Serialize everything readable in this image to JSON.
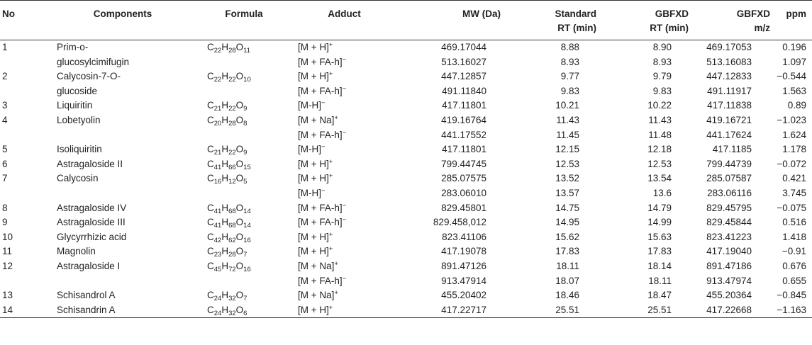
{
  "headers": {
    "no": "No",
    "components": "Components",
    "formula": "Formula",
    "adduct": "Adduct",
    "mw": "MW (Da)",
    "std_rt": [
      "Standard",
      "RT (min)"
    ],
    "gbfxd_rt": [
      "GBFXD",
      "RT (min)"
    ],
    "gbfxd_mz": [
      "GBFXD",
      "m/z"
    ],
    "ppm": "ppm"
  },
  "rows": [
    {
      "no": "1",
      "component": "Prim-o-",
      "formula": [
        [
          "C",
          "22"
        ],
        [
          "H",
          "28"
        ],
        [
          "O",
          "11"
        ]
      ],
      "adduct": [
        "[M + H]",
        "+"
      ],
      "mw": "469.17044",
      "std_rt": "8.88",
      "gbfxd_rt": "8.90",
      "gbfxd_mz": "469.17053",
      "ppm": "0.196"
    },
    {
      "no": "",
      "component": "glucosylcimifugin",
      "formula": [],
      "adduct": [
        "[M + FA-h]",
        "−"
      ],
      "mw": "513.16027",
      "std_rt": "8.93",
      "gbfxd_rt": "8.93",
      "gbfxd_mz": "513.16083",
      "ppm": "1.097"
    },
    {
      "no": "2",
      "component": "Calycosin-7-O-",
      "formula": [
        [
          "C",
          "22"
        ],
        [
          "H",
          "22"
        ],
        [
          "O",
          "10"
        ]
      ],
      "adduct": [
        "[M + H]",
        "+"
      ],
      "mw": "447.12857",
      "std_rt": "9.77",
      "gbfxd_rt": "9.79",
      "gbfxd_mz": "447.12833",
      "ppm": "−0.544"
    },
    {
      "no": "",
      "component": "glucoside",
      "formula": [],
      "adduct": [
        "[M + FA-h]",
        "−"
      ],
      "mw": "491.11840",
      "std_rt": "9.83",
      "gbfxd_rt": "9.83",
      "gbfxd_mz": "491.11917",
      "ppm": "1.563"
    },
    {
      "no": "3",
      "component": "Liquiritin",
      "formula": [
        [
          "C",
          "21"
        ],
        [
          "H",
          "22"
        ],
        [
          "O",
          "9"
        ]
      ],
      "adduct": [
        "[M-H]",
        "−"
      ],
      "mw": "417.11801",
      "std_rt": "10.21",
      "gbfxd_rt": "10.22",
      "gbfxd_mz": "417.11838",
      "ppm": "0.89"
    },
    {
      "no": "4",
      "component": "Lobetyolin",
      "formula": [
        [
          "C",
          "20"
        ],
        [
          "H",
          "28"
        ],
        [
          "O",
          "8"
        ]
      ],
      "adduct": [
        "[M + Na]",
        "+"
      ],
      "mw": "419.16764",
      "std_rt": "11.43",
      "gbfxd_rt": "11.43",
      "gbfxd_mz": "419.16721",
      "ppm": "−1.023"
    },
    {
      "no": "",
      "component": "",
      "formula": [],
      "adduct": [
        "[M + FA-h]",
        "−"
      ],
      "mw": "441.17552",
      "std_rt": "11.45",
      "gbfxd_rt": "11.48",
      "gbfxd_mz": "441.17624",
      "ppm": "1.624"
    },
    {
      "no": "5",
      "component": "Isoliquiritin",
      "formula": [
        [
          "C",
          "21"
        ],
        [
          "H",
          "22"
        ],
        [
          "O",
          "9"
        ]
      ],
      "adduct": [
        "[M-H]",
        "−"
      ],
      "mw": "417.11801",
      "std_rt": "12.15",
      "gbfxd_rt": "12.18",
      "gbfxd_mz": "417.1185",
      "ppm": "1.178"
    },
    {
      "no": "6",
      "component": "Astragaloside II",
      "formula": [
        [
          "C",
          "41"
        ],
        [
          "H",
          "66"
        ],
        [
          "O",
          "15"
        ]
      ],
      "adduct": [
        "[M + H]",
        "+"
      ],
      "mw": "799.44745",
      "std_rt": "12.53",
      "gbfxd_rt": "12.53",
      "gbfxd_mz": "799.44739",
      "ppm": "−0.072"
    },
    {
      "no": "7",
      "component": "Calycosin",
      "formula": [
        [
          "C",
          "16"
        ],
        [
          "H",
          "12"
        ],
        [
          "O",
          "5"
        ]
      ],
      "adduct": [
        "[M + H]",
        "+"
      ],
      "mw": "285.07575",
      "std_rt": "13.52",
      "gbfxd_rt": "13.54",
      "gbfxd_mz": "285.07587",
      "ppm": "0.421"
    },
    {
      "no": "",
      "component": "",
      "formula": [],
      "adduct": [
        "[M-H]",
        "−"
      ],
      "mw": "283.06010",
      "std_rt": "13.57",
      "gbfxd_rt": "13.6",
      "gbfxd_mz": "283.06116",
      "ppm": "3.745"
    },
    {
      "no": "8",
      "component": "Astragaloside IV",
      "formula": [
        [
          "C",
          "41"
        ],
        [
          "H",
          "68"
        ],
        [
          "O",
          "14"
        ]
      ],
      "adduct": [
        "[M + FA-h]",
        "−"
      ],
      "mw": "829.45801",
      "std_rt": "14.75",
      "gbfxd_rt": "14.79",
      "gbfxd_mz": "829.45795",
      "ppm": "−0.075"
    },
    {
      "no": "9",
      "component": "Astragaloside III",
      "formula": [
        [
          "C",
          "41"
        ],
        [
          "H",
          "68"
        ],
        [
          "O",
          "14"
        ]
      ],
      "adduct": [
        "[M + FA-h]",
        "−"
      ],
      "mw": "829.458,012",
      "std_rt": "14.95",
      "gbfxd_rt": "14.99",
      "gbfxd_mz": "829.45844",
      "ppm": "0.516"
    },
    {
      "no": "10",
      "component": "Glycyrrhizic acid",
      "formula": [
        [
          "C",
          "42"
        ],
        [
          "H",
          "62"
        ],
        [
          "O",
          "16"
        ]
      ],
      "adduct": [
        "[M + H]",
        "+"
      ],
      "mw": "823.41106",
      "std_rt": "15.62",
      "gbfxd_rt": "15.63",
      "gbfxd_mz": "823.41223",
      "ppm": "1.418"
    },
    {
      "no": "11",
      "component": "Magnolin",
      "formula": [
        [
          "C",
          "23"
        ],
        [
          "H",
          "28"
        ],
        [
          "O",
          "7"
        ]
      ],
      "adduct": [
        "[M + H]",
        "+"
      ],
      "mw": "417.19078",
      "std_rt": "17.83",
      "gbfxd_rt": "17.83",
      "gbfxd_mz": "417.19040",
      "ppm": "−0.91"
    },
    {
      "no": "12",
      "component": "Astragaloside I",
      "formula": [
        [
          "C",
          "45"
        ],
        [
          "H",
          "72"
        ],
        [
          "O",
          "16"
        ]
      ],
      "adduct": [
        "[M + Na]",
        "+"
      ],
      "mw": "891.47126",
      "std_rt": "18.11",
      "gbfxd_rt": "18.14",
      "gbfxd_mz": "891.47186",
      "ppm": "0.676"
    },
    {
      "no": "",
      "component": "",
      "formula": [],
      "adduct": [
        "[M + FA-h]",
        "−"
      ],
      "mw": "913.47914",
      "std_rt": "18.07",
      "gbfxd_rt": "18.11",
      "gbfxd_mz": "913.47974",
      "ppm": "0.655"
    },
    {
      "no": "13",
      "component": "Schisandrol A",
      "formula": [
        [
          "C",
          "24"
        ],
        [
          "H",
          "32"
        ],
        [
          "O",
          "7"
        ]
      ],
      "adduct": [
        "[M + Na]",
        "+"
      ],
      "mw": "455.20402",
      "std_rt": "18.46",
      "gbfxd_rt": "18.47",
      "gbfxd_mz": "455.20364",
      "ppm": "−0.845"
    },
    {
      "no": "14",
      "component": "Schisandrin A",
      "formula": [
        [
          "C",
          "24"
        ],
        [
          "H",
          "32"
        ],
        [
          "O",
          "6"
        ]
      ],
      "adduct": [
        "[M + H]",
        "+"
      ],
      "mw": "417.22717",
      "std_rt": "25.51",
      "gbfxd_rt": "25.51",
      "gbfxd_mz": "417.22668",
      "ppm": "−1.163"
    }
  ]
}
